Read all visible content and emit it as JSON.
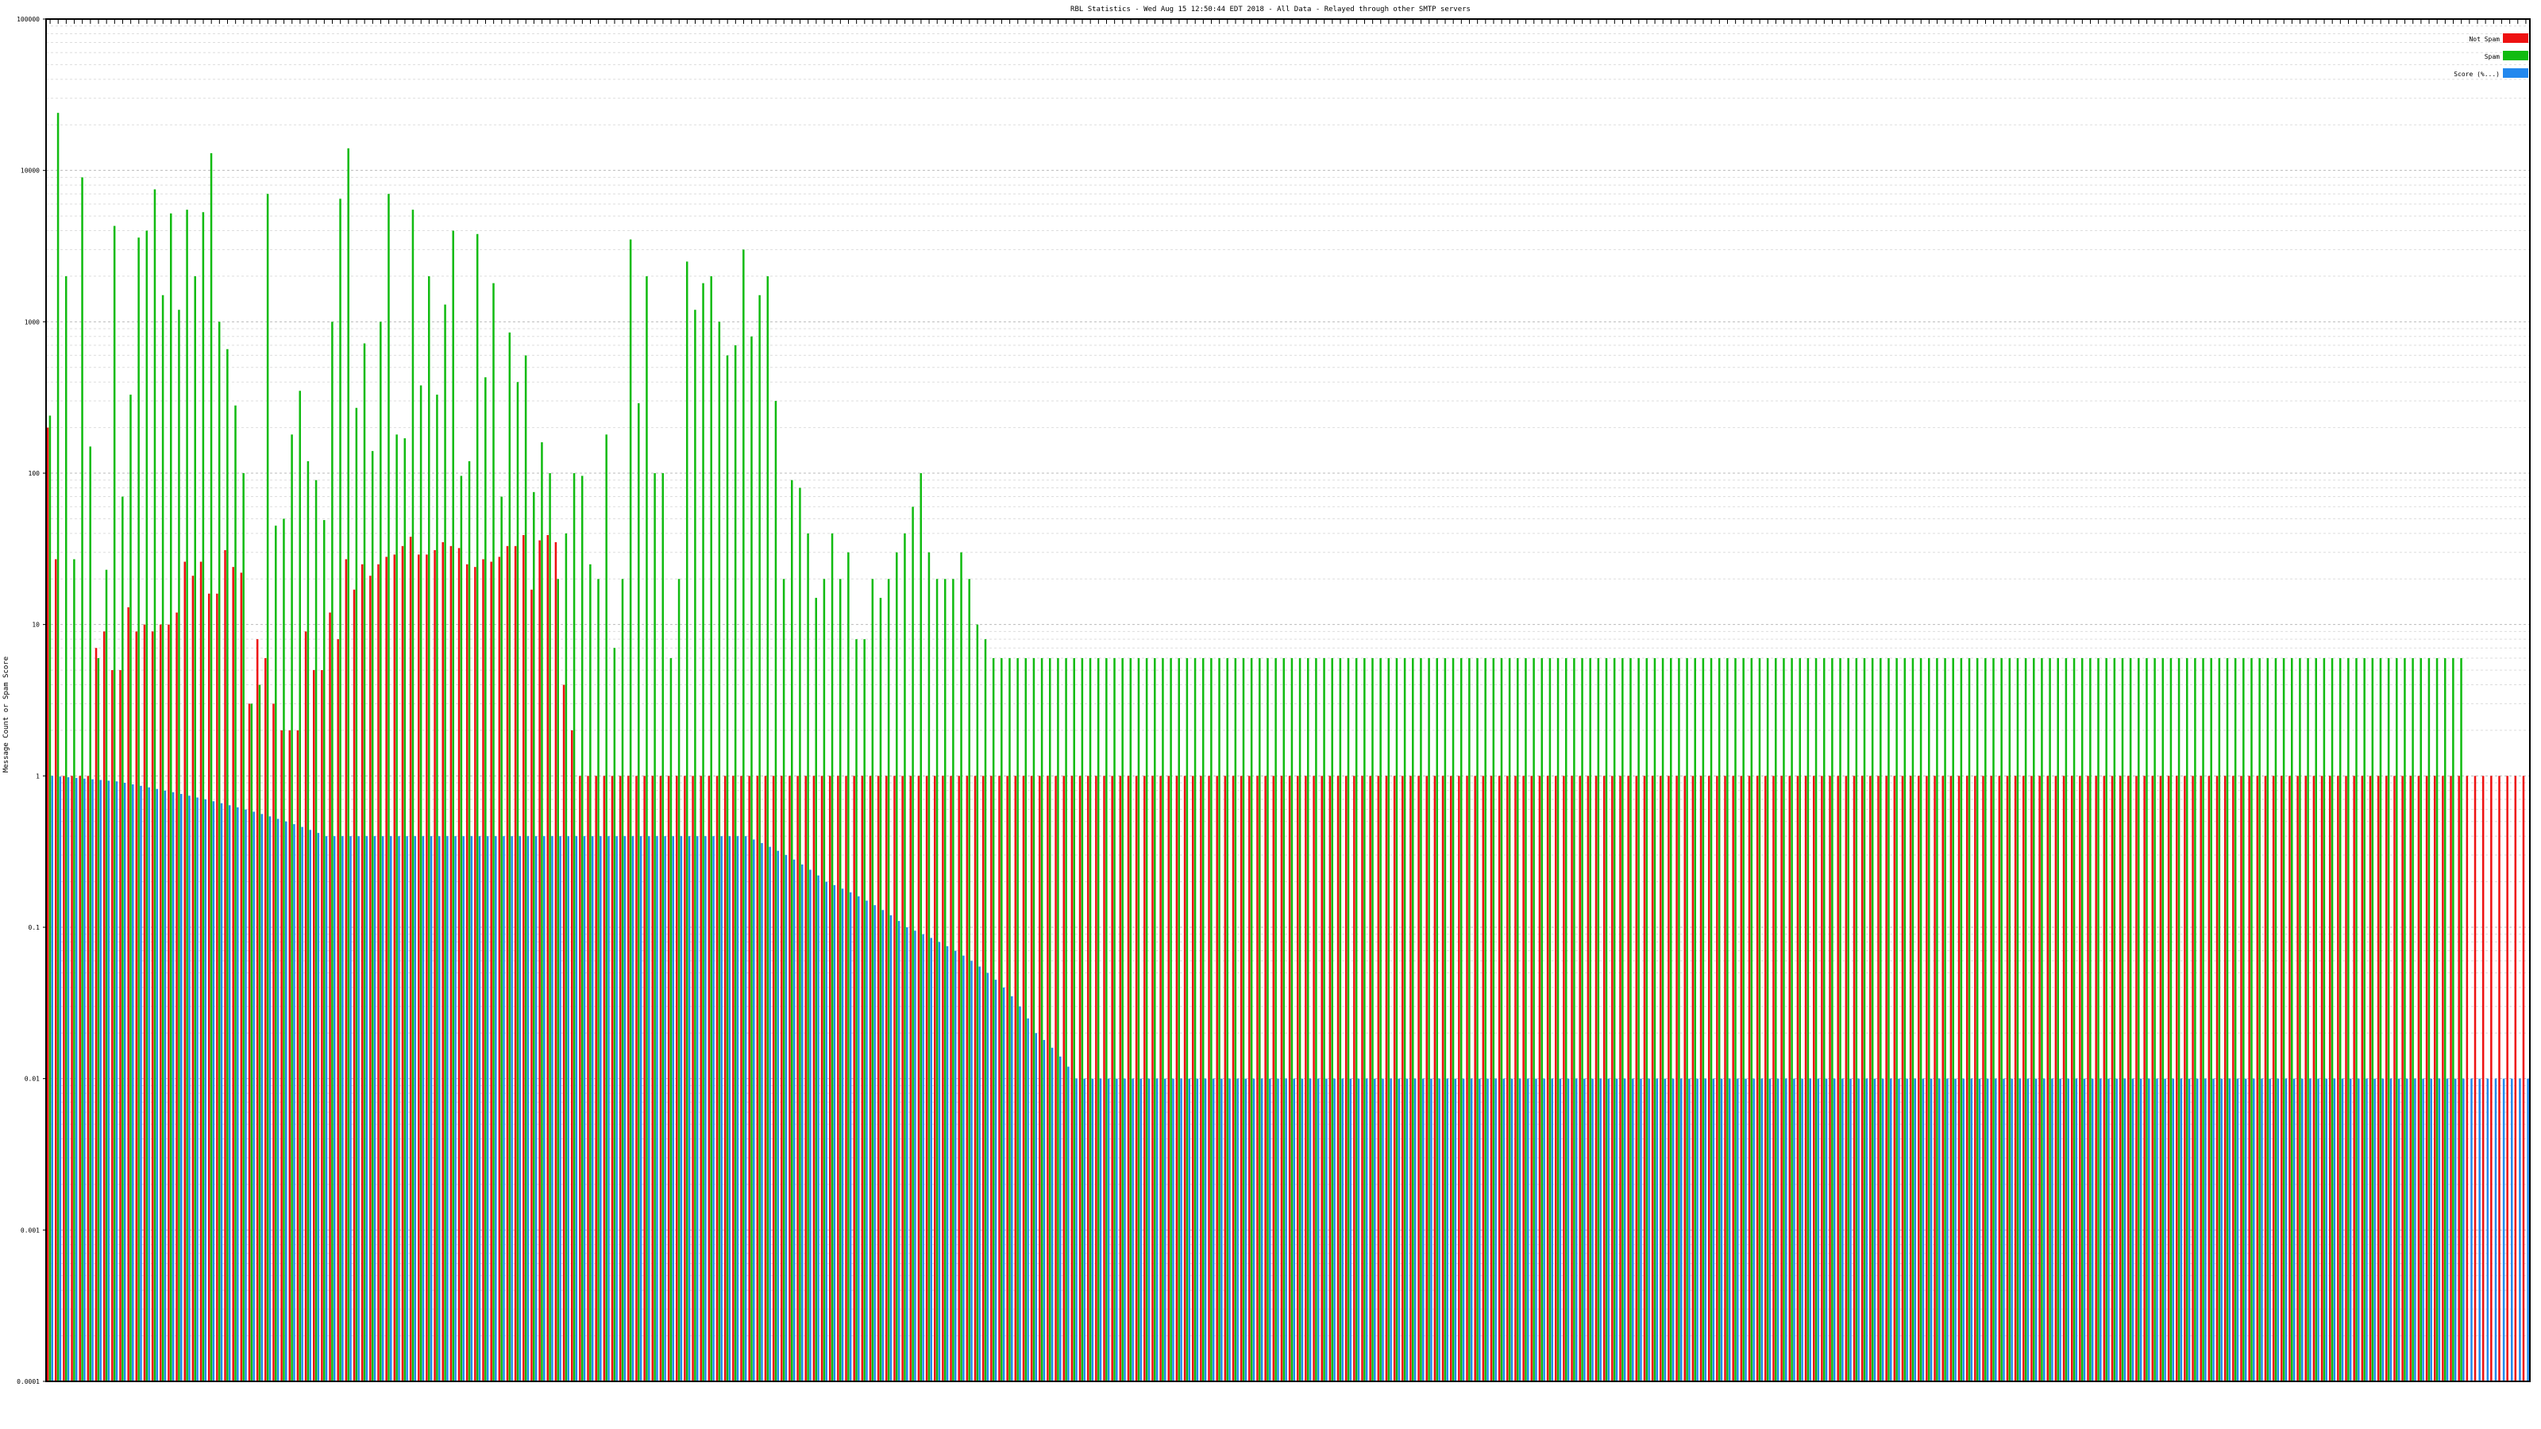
{
  "chart_data": {
    "type": "bar",
    "title": "RBL Statistics - Wed Aug 15 12:50:44 EDT 2018 - All Data - Relayed through other SMTP servers",
    "xlabel": "",
    "ylabel": "Message Count or Spam Score",
    "scale": "log",
    "ylim": [
      0.0001,
      100000
    ],
    "y_ticks": [
      "0.0001",
      "0.001",
      "0.01",
      "0.1",
      "1",
      "10",
      "100",
      "1000",
      "10000",
      "100000"
    ],
    "grid": true,
    "legend_position": "top-right",
    "series": [
      {
        "name": "Not Spam",
        "color": "#ee1111",
        "values": [
          200,
          27,
          1,
          1,
          1,
          1,
          7,
          9,
          5,
          5,
          13,
          9,
          10,
          9,
          10,
          10,
          12,
          26,
          21,
          26,
          16,
          16,
          31,
          24,
          22,
          3,
          8,
          6,
          3,
          2,
          2,
          2,
          9,
          5,
          5,
          12,
          8,
          27,
          17,
          25,
          21,
          25,
          28,
          29,
          33,
          38,
          29,
          29,
          31,
          35,
          33,
          32,
          25,
          24,
          27,
          26,
          28,
          33,
          33,
          39,
          17,
          36,
          39,
          35,
          4,
          2,
          1,
          1,
          1,
          1,
          1,
          1,
          1,
          1,
          1,
          1,
          1,
          1,
          1,
          1,
          1,
          1,
          1,
          1,
          1,
          1,
          1,
          1,
          1,
          1,
          1,
          1,
          1,
          1,
          1,
          1,
          1,
          1,
          1,
          1,
          1,
          1,
          1,
          1,
          1,
          1,
          1,
          1,
          1,
          1,
          1,
          1,
          1,
          1,
          1,
          1,
          1,
          1,
          1,
          1,
          1,
          1,
          1,
          1,
          1,
          1,
          1,
          1,
          1,
          1,
          1,
          1,
          1,
          1,
          1,
          1,
          1,
          1,
          1,
          1,
          1,
          1,
          1,
          1,
          1,
          1,
          1,
          1,
          1,
          1,
          1,
          1,
          1,
          1,
          1,
          1,
          1,
          1,
          1,
          1,
          1,
          1,
          1,
          1,
          1,
          1,
          1,
          1,
          1,
          1,
          1,
          1,
          1,
          1,
          1,
          1,
          1,
          1,
          1,
          1,
          1,
          1,
          1,
          1,
          1,
          1,
          1,
          1,
          1,
          1,
          1,
          1,
          1,
          1,
          1,
          1,
          1,
          1,
          1,
          1,
          1,
          1,
          1,
          1,
          1,
          1,
          1,
          1,
          1,
          1,
          1,
          1,
          1,
          1,
          1,
          1,
          1,
          1,
          1,
          1,
          1,
          1,
          1,
          1,
          1,
          1,
          1,
          1,
          1,
          1,
          1,
          1,
          1,
          1,
          1,
          1,
          1,
          1,
          1,
          1,
          1,
          1,
          1,
          1,
          1,
          1,
          1,
          1,
          1,
          1,
          1,
          1,
          1,
          1,
          1,
          1,
          1,
          1,
          1,
          1,
          1,
          1,
          1,
          1,
          1,
          1,
          1,
          1,
          1,
          1,
          1,
          1,
          1,
          1,
          1,
          1,
          1,
          1,
          1,
          1,
          1,
          1,
          1,
          1,
          1,
          1,
          1,
          1,
          1,
          1,
          1,
          1,
          1,
          1,
          1,
          1,
          1,
          1,
          1,
          1,
          1,
          1,
          1,
          1,
          1,
          1,
          1,
          1
        ]
      },
      {
        "name": "Spam",
        "color": "#11bb11",
        "values": [
          240,
          24000,
          2000,
          27,
          9000,
          150,
          6,
          23,
          4300,
          70,
          330,
          3600,
          4000,
          7500,
          1500,
          5200,
          1200,
          5500,
          2000,
          5300,
          13000,
          1000,
          660,
          280,
          100,
          3,
          4,
          7000,
          45,
          50,
          180,
          350,
          120,
          90,
          49,
          1000,
          6500,
          14000,
          270,
          720,
          140,
          1000,
          7000,
          180,
          170,
          5500,
          380,
          2000,
          330,
          1300,
          4000,
          96,
          120,
          3800,
          430,
          1800,
          70,
          850,
          400,
          600,
          75,
          160,
          100,
          20,
          40,
          100,
          96,
          25,
          20,
          180,
          7,
          20,
          3500,
          290,
          2000,
          100,
          100,
          6,
          20,
          2500,
          1200,
          1800,
          2000,
          1000,
          600,
          700,
          3000,
          800,
          1500,
          2000,
          300,
          20,
          90,
          80,
          40,
          15,
          20,
          40,
          20,
          30,
          8,
          8,
          20,
          15,
          20,
          30,
          40,
          60,
          100,
          30,
          20,
          20,
          20,
          30,
          20,
          10,
          8,
          6,
          6,
          6,
          6,
          6,
          6,
          6,
          6,
          6,
          6,
          6,
          6,
          6,
          6,
          6,
          6,
          6,
          6,
          6,
          6,
          6,
          6,
          6,
          6,
          6,
          6,
          6,
          6,
          6,
          6,
          6,
          6,
          6,
          6,
          6,
          6,
          6,
          6,
          6,
          6,
          6,
          6,
          6,
          6,
          6,
          6,
          6,
          6,
          6,
          6,
          6,
          6,
          6,
          6,
          6,
          6,
          6,
          6,
          6,
          6,
          6,
          6,
          6,
          6,
          6,
          6,
          6,
          6,
          6,
          6,
          6,
          6,
          6,
          6,
          6,
          6,
          6,
          6,
          6,
          6,
          6,
          6,
          6,
          6,
          6,
          6,
          6,
          6,
          6,
          6,
          6,
          6,
          6,
          6,
          6,
          6,
          6,
          6,
          6,
          6,
          6,
          6,
          6,
          6,
          6,
          6,
          6,
          6,
          6,
          6,
          6,
          6,
          6,
          6,
          6,
          6,
          6,
          6,
          6,
          6,
          6,
          6,
          6,
          6,
          6,
          6,
          6,
          6,
          6,
          6,
          6,
          6,
          6,
          6,
          6,
          6,
          6,
          6,
          6,
          6,
          6,
          6,
          6,
          6,
          6,
          6,
          6,
          6,
          6,
          6,
          6,
          6,
          6,
          6,
          6,
          6,
          6,
          6,
          6,
          6,
          6,
          6,
          6,
          6,
          6,
          6,
          6,
          6,
          6,
          6,
          6,
          6,
          6,
          6,
          6,
          6,
          6,
          6,
          6,
          6,
          6,
          6,
          6
        ]
      },
      {
        "name": "Score (%...)",
        "color": "#2288ee",
        "values": [
          1,
          0.99,
          0.98,
          0.97,
          0.96,
          0.95,
          0.94,
          0.93,
          0.92,
          0.9,
          0.88,
          0.86,
          0.84,
          0.82,
          0.8,
          0.78,
          0.76,
          0.74,
          0.72,
          0.7,
          0.68,
          0.66,
          0.64,
          0.62,
          0.6,
          0.58,
          0.56,
          0.54,
          0.52,
          0.5,
          0.48,
          0.46,
          0.44,
          0.42,
          0.4,
          0.4,
          0.4,
          0.4,
          0.4,
          0.4,
          0.4,
          0.4,
          0.4,
          0.4,
          0.4,
          0.4,
          0.4,
          0.4,
          0.4,
          0.4,
          0.4,
          0.4,
          0.4,
          0.4,
          0.4,
          0.4,
          0.4,
          0.4,
          0.4,
          0.4,
          0.4,
          0.4,
          0.4,
          0.4,
          0.4,
          0.4,
          0.4,
          0.4,
          0.4,
          0.4,
          0.4,
          0.4,
          0.4,
          0.4,
          0.4,
          0.4,
          0.4,
          0.4,
          0.4,
          0.4,
          0.4,
          0.4,
          0.4,
          0.4,
          0.4,
          0.4,
          0.4,
          0.38,
          0.36,
          0.34,
          0.32,
          0.3,
          0.28,
          0.26,
          0.24,
          0.22,
          0.2,
          0.19,
          0.18,
          0.17,
          0.16,
          0.15,
          0.14,
          0.13,
          0.12,
          0.11,
          0.1,
          0.095,
          0.09,
          0.085,
          0.08,
          0.075,
          0.07,
          0.065,
          0.06,
          0.055,
          0.05,
          0.045,
          0.04,
          0.035,
          0.03,
          0.025,
          0.02,
          0.018,
          0.016,
          0.014,
          0.012,
          0.01,
          0.01,
          0.01,
          0.01,
          0.01,
          0.01,
          0.01,
          0.01,
          0.01,
          0.01,
          0.01,
          0.01,
          0.01,
          0.01,
          0.01,
          0.01,
          0.01,
          0.01,
          0.01,
          0.01,
          0.01,
          0.01,
          0.01,
          0.01,
          0.01,
          0.01,
          0.01,
          0.01,
          0.01,
          0.01,
          0.01,
          0.01,
          0.01,
          0.01,
          0.01,
          0.01,
          0.01,
          0.01,
          0.01,
          0.01,
          0.01,
          0.01,
          0.01,
          0.01,
          0.01,
          0.01,
          0.01,
          0.01,
          0.01,
          0.01,
          0.01,
          0.01,
          0.01,
          0.01,
          0.01,
          0.01,
          0.01,
          0.01,
          0.01,
          0.01,
          0.01,
          0.01,
          0.01,
          0.01,
          0.01,
          0.01,
          0.01,
          0.01,
          0.01,
          0.01,
          0.01,
          0.01,
          0.01,
          0.01,
          0.01,
          0.01,
          0.01,
          0.01,
          0.01,
          0.01,
          0.01,
          0.01,
          0.01,
          0.01,
          0.01,
          0.01,
          0.01,
          0.01,
          0.01,
          0.01,
          0.01,
          0.01,
          0.01,
          0.01,
          0.01,
          0.01,
          0.01,
          0.01,
          0.01,
          0.01,
          0.01,
          0.01,
          0.01,
          0.01,
          0.01,
          0.01,
          0.01,
          0.01,
          0.01,
          0.01,
          0.01,
          0.01,
          0.01,
          0.01,
          0.01,
          0.01,
          0.01,
          0.01,
          0.01,
          0.01,
          0.01,
          0.01,
          0.01,
          0.01,
          0.01,
          0.01,
          0.01,
          0.01,
          0.01,
          0.01,
          0.01,
          0.01,
          0.01,
          0.01,
          0.01,
          0.01,
          0.01,
          0.01,
          0.01,
          0.01,
          0.01,
          0.01,
          0.01,
          0.01,
          0.01,
          0.01,
          0.01,
          0.01,
          0.01,
          0.01,
          0.01,
          0.01,
          0.01,
          0.01,
          0.01,
          0.01,
          0.01,
          0.01,
          0.01,
          0.01,
          0.01,
          0.01,
          0.01,
          0.01,
          0.01,
          0.01,
          0.01,
          0.01,
          0.01,
          0.01,
          0.01,
          0.01,
          0.01,
          0.01,
          0.01,
          0.01,
          0.01,
          0.01,
          0.01,
          0.01,
          0.01,
          0.01,
          0.01,
          0.01,
          0.01,
          0.01,
          0.01,
          0.01,
          0.01
        ]
      }
    ]
  }
}
